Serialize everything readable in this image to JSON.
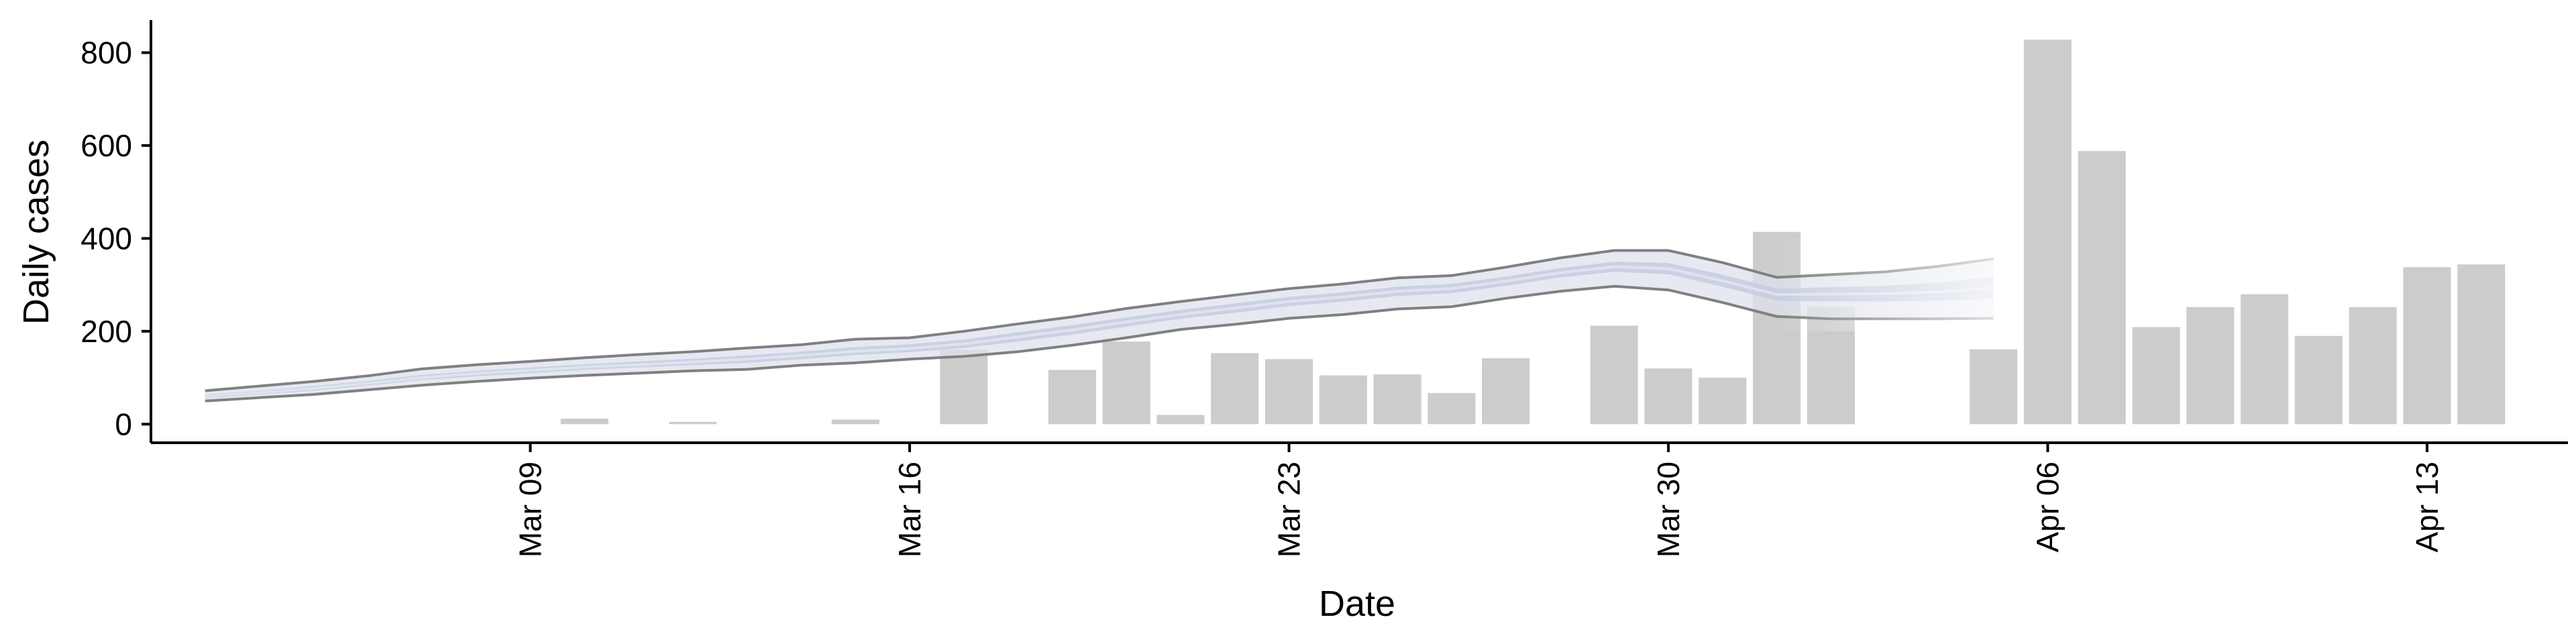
{
  "chart_data": {
    "type": "bar",
    "xlabel": "Date",
    "ylabel": "Daily cases",
    "ylim": [
      -40,
      870
    ],
    "grid": false,
    "legend": "none",
    "x_start": "2020-03-03",
    "xlim_days": [
      -1.0,
      43.6
    ],
    "x_ticks": [
      {
        "label": "Mar 09",
        "date": "2020-03-09"
      },
      {
        "label": "Mar 16",
        "date": "2020-03-16"
      },
      {
        "label": "Mar 23",
        "date": "2020-03-23"
      },
      {
        "label": "Mar 30",
        "date": "2020-03-30"
      },
      {
        "label": "Apr 06",
        "date": "2020-04-06"
      },
      {
        "label": "Apr 13",
        "date": "2020-04-13"
      }
    ],
    "y_ticks": [
      0,
      200,
      400,
      600,
      800
    ],
    "bars": [
      {
        "date": "2020-03-10",
        "value": 12
      },
      {
        "date": "2020-03-12",
        "value": 5
      },
      {
        "date": "2020-03-15",
        "value": 10
      },
      {
        "date": "2020-03-17",
        "value": 160
      },
      {
        "date": "2020-03-19",
        "value": 117
      },
      {
        "date": "2020-03-20",
        "value": 178
      },
      {
        "date": "2020-03-21",
        "value": 20
      },
      {
        "date": "2020-03-22",
        "value": 153
      },
      {
        "date": "2020-03-23",
        "value": 140
      },
      {
        "date": "2020-03-24",
        "value": 105
      },
      {
        "date": "2020-03-25",
        "value": 107
      },
      {
        "date": "2020-03-26",
        "value": 67
      },
      {
        "date": "2020-03-27",
        "value": 142
      },
      {
        "date": "2020-03-29",
        "value": 212
      },
      {
        "date": "2020-03-30",
        "value": 120
      },
      {
        "date": "2020-03-31",
        "value": 100
      },
      {
        "date": "2020-04-01",
        "value": 414
      },
      {
        "date": "2020-04-02",
        "value": 253
      },
      {
        "date": "2020-04-05",
        "value": 161
      },
      {
        "date": "2020-04-06",
        "value": 828
      },
      {
        "date": "2020-04-07",
        "value": 588
      },
      {
        "date": "2020-04-08",
        "value": 209
      },
      {
        "date": "2020-04-09",
        "value": 252
      },
      {
        "date": "2020-04-10",
        "value": 280
      },
      {
        "date": "2020-04-11",
        "value": 190
      },
      {
        "date": "2020-04-12",
        "value": 252
      },
      {
        "date": "2020-04-13",
        "value": 338
      },
      {
        "date": "2020-04-14",
        "value": 344
      }
    ],
    "estimate": {
      "dates": [
        "2020-03-03",
        "2020-03-04",
        "2020-03-05",
        "2020-03-06",
        "2020-03-07",
        "2020-03-08",
        "2020-03-09",
        "2020-03-10",
        "2020-03-11",
        "2020-03-12",
        "2020-03-13",
        "2020-03-14",
        "2020-03-15",
        "2020-03-16",
        "2020-03-17",
        "2020-03-18",
        "2020-03-19",
        "2020-03-20",
        "2020-03-21",
        "2020-03-22",
        "2020-03-23",
        "2020-03-24",
        "2020-03-25",
        "2020-03-26",
        "2020-03-27",
        "2020-03-28",
        "2020-03-29",
        "2020-03-30",
        "2020-03-31",
        "2020-04-01",
        "2020-04-02",
        "2020-04-03",
        "2020-04-04",
        "2020-04-05"
      ],
      "upper": [
        72,
        82,
        92,
        104,
        119,
        128,
        135,
        143,
        150,
        156,
        164,
        171,
        183,
        186,
        200,
        216,
        231,
        249,
        264,
        278,
        292,
        302,
        315,
        320,
        338,
        358,
        374,
        374,
        348,
        316,
        322,
        328,
        340,
        356
      ],
      "lower": [
        50,
        57,
        64,
        74,
        84,
        92,
        99,
        105,
        110,
        115,
        118,
        127,
        132,
        140,
        146,
        156,
        170,
        186,
        204,
        215,
        228,
        236,
        248,
        253,
        271,
        286,
        297,
        289,
        262,
        232,
        227,
        227,
        227,
        228
      ],
      "inner_upper": [
        64,
        72,
        82,
        93,
        106,
        115,
        122,
        129,
        135,
        141,
        148,
        156,
        166,
        172,
        182,
        198,
        213,
        230,
        246,
        260,
        274,
        284,
        296,
        302,
        318,
        336,
        350,
        347,
        322,
        292,
        295,
        298,
        305,
        318
      ],
      "inner_lower": [
        56,
        64,
        72,
        83,
        95,
        103,
        110,
        117,
        122,
        127,
        132,
        140,
        149,
        155,
        164,
        178,
        193,
        210,
        227,
        240,
        254,
        264,
        276,
        282,
        298,
        316,
        328,
        323,
        296,
        266,
        264,
        264,
        266,
        270
      ],
      "median": [
        60,
        68,
        77,
        88,
        100,
        109,
        116,
        123,
        128,
        134,
        140,
        148,
        157,
        163,
        173,
        188,
        203,
        220,
        236,
        250,
        264,
        274,
        286,
        292,
        308,
        326,
        339,
        335,
        309,
        279,
        280,
        281,
        285,
        294
      ]
    },
    "colors": {
      "bar": "#cccccc",
      "band_outer": "#dde1ec",
      "band_inner": "#c5cde0",
      "band_outline": "#808080",
      "axis": "#000000"
    }
  }
}
